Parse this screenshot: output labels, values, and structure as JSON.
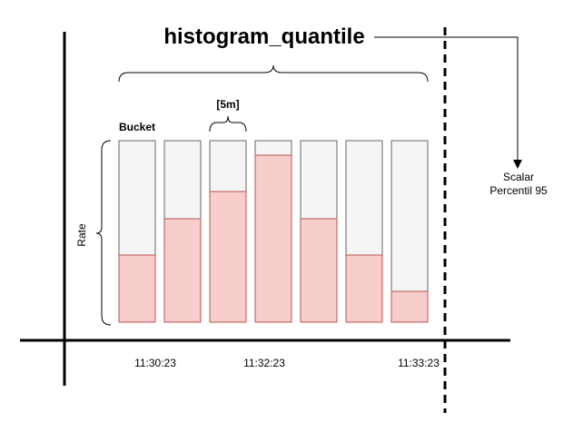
{
  "diagram": {
    "title": "histogram_quantile",
    "bucket_label": "Bucket",
    "window_label": "[5m]",
    "rate_label": "Rate",
    "scalar_label_line1": "Scalar",
    "scalar_label_line2": "Percentil 95",
    "time_labels": [
      "11:30:23",
      "11:32:23",
      "11:33:23"
    ],
    "bucket_fill_fractions": [
      0.37,
      0.57,
      0.72,
      0.92,
      0.57,
      0.37,
      0.17
    ],
    "colors": {
      "bucket_empty": "#f5f5f5",
      "bucket_empty_stroke": "#666666",
      "bucket_fill": "#f8cecc",
      "bucket_fill_stroke": "#b85450",
      "lines": "#000000"
    }
  }
}
